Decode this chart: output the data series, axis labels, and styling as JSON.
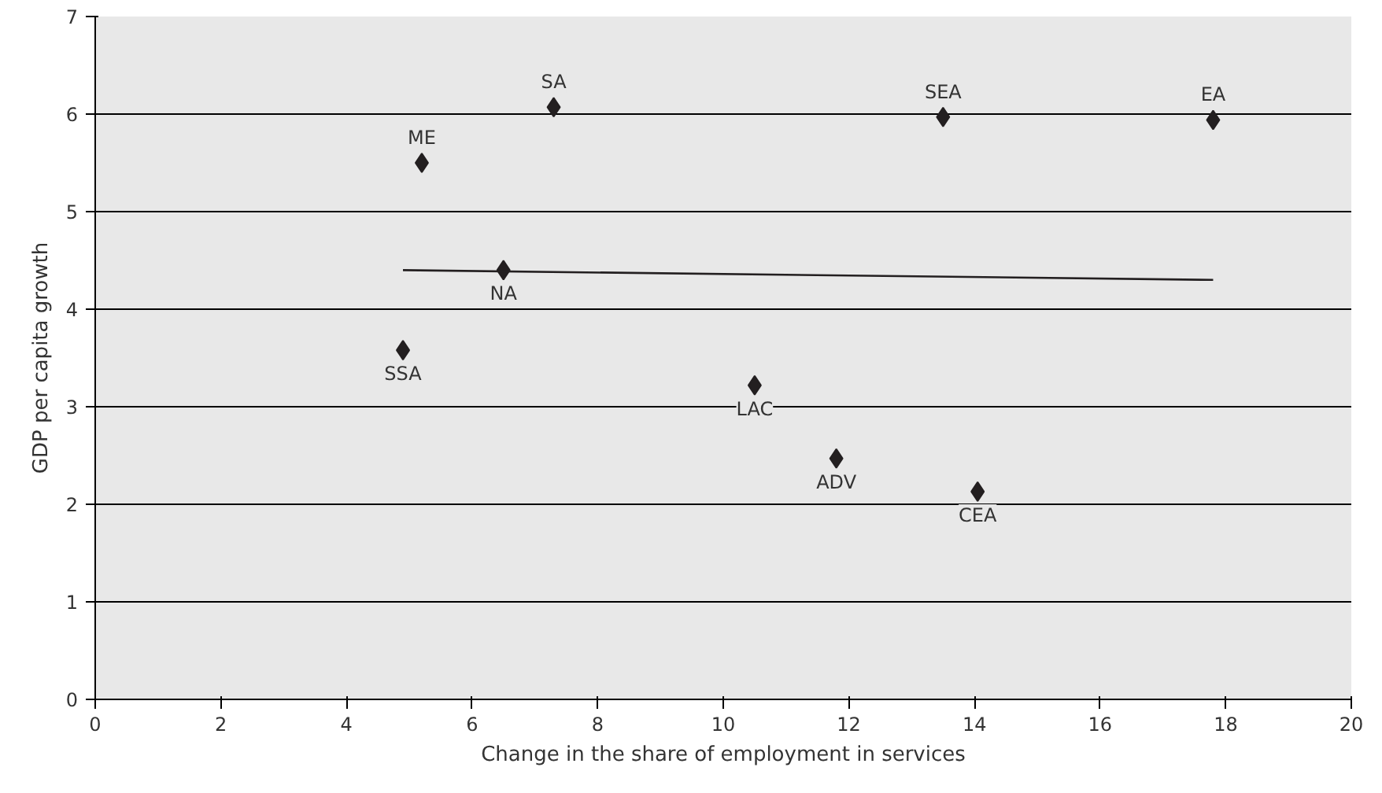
{
  "chart_data": {
    "type": "scatter",
    "xlabel": "Change in the share of employment in services",
    "ylabel": "GDP per capita growth",
    "series": [
      {
        "marker": "diamond",
        "color": "#231f20",
        "x": [
          4.9,
          5.2,
          6.5,
          7.3,
          10.5,
          11.8,
          13.5,
          14.05,
          17.8
        ],
        "values": [
          3.58,
          5.5,
          4.4,
          6.07,
          3.22,
          2.47,
          5.97,
          2.13,
          5.94
        ]
      },
      {
        "type": "line",
        "marker": "none",
        "color": "#231f20",
        "x": [
          4.9,
          17.8
        ],
        "values": [
          4.4,
          4.3
        ]
      }
    ],
    "annotations": [
      {
        "text": "SSA",
        "x": 4.9,
        "y": 3.58
      },
      {
        "text": "ME",
        "x": 5.2,
        "y": 5.5
      },
      {
        "text": "NA",
        "x": 6.5,
        "y": 4.4
      },
      {
        "text": "SA",
        "x": 7.3,
        "y": 6.07
      },
      {
        "text": "LAC",
        "x": 10.5,
        "y": 3.22
      },
      {
        "text": "ADV",
        "x": 11.8,
        "y": 2.47
      },
      {
        "text": "SEA",
        "x": 13.5,
        "y": 5.97
      },
      {
        "text": "CEA",
        "x": 14.05,
        "y": 2.13
      },
      {
        "text": "EA",
        "x": 17.8,
        "y": 5.94
      }
    ],
    "xlim": [
      0,
      20
    ],
    "xticks": [
      0,
      2,
      4,
      6,
      8,
      10,
      12,
      14,
      16,
      18,
      20
    ],
    "ylim": [
      0,
      7
    ],
    "yticks": [
      0,
      1,
      2,
      3,
      4,
      5,
      6,
      7
    ],
    "grid": "y"
  }
}
